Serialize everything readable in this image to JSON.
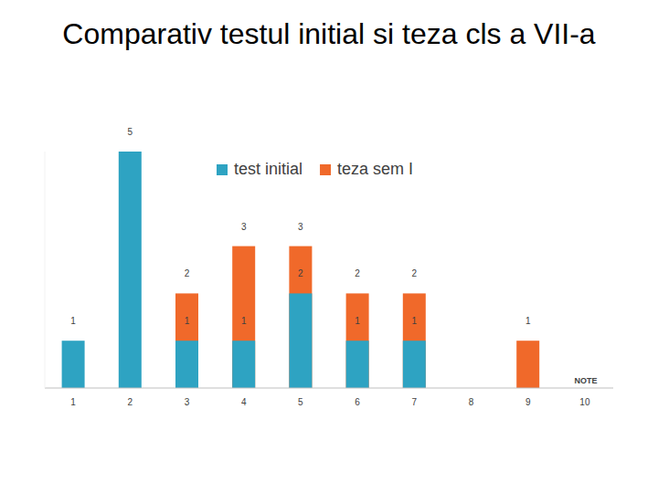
{
  "chart_data": {
    "type": "bar",
    "title": "Comparativ testul initial si teza cls a VII-a",
    "x_label": "NOTE",
    "categories": [
      "1",
      "2",
      "3",
      "4",
      "5",
      "6",
      "7",
      "8",
      "9",
      "10"
    ],
    "series": [
      {
        "name": "test initial",
        "color": "#2ea3c2",
        "values": [
          1,
          5,
          1,
          1,
          2,
          1,
          1,
          null,
          null,
          null
        ]
      },
      {
        "name": "teza sem I",
        "color": "#f0692a",
        "values": [
          null,
          null,
          2,
          3,
          3,
          2,
          2,
          null,
          1,
          null
        ]
      }
    ],
    "ylim": [
      0,
      5
    ],
    "stacked": false,
    "data_labels": true,
    "tick_labels": "x",
    "legend": "top"
  }
}
